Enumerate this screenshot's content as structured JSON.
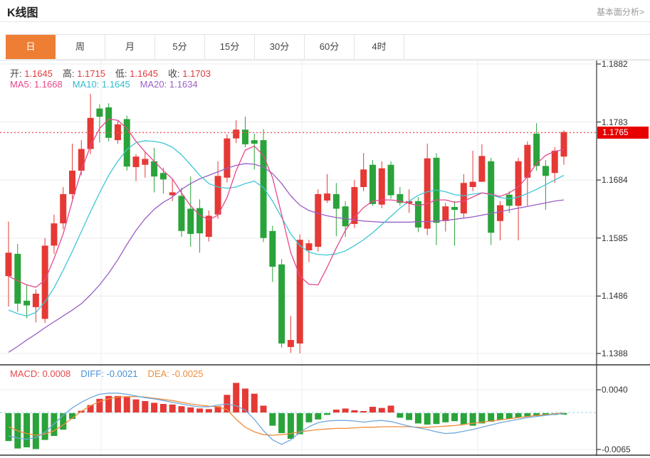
{
  "header": {
    "title": "K线图",
    "analysis_link": "基本面分析>"
  },
  "tabs": {
    "items": [
      "日",
      "周",
      "月",
      "5分",
      "15分",
      "30分",
      "60分",
      "4时"
    ],
    "active": "日"
  },
  "kline_panel": {
    "ohlc_legend": [
      {
        "label": "开:",
        "value": "1.1645"
      },
      {
        "label": "高:",
        "value": "1.1715"
      },
      {
        "label": "低:",
        "value": "1.1645"
      },
      {
        "label": "收:",
        "value": "1.1703"
      }
    ],
    "ma_legend": [
      {
        "label": "MA5:",
        "value": "1.1668",
        "color": "#e5488e"
      },
      {
        "label": "MA10:",
        "value": "1.1645",
        "color": "#2fbccc"
      },
      {
        "label": "MA20:",
        "value": "1.1634",
        "color": "#9a5fc5"
      }
    ],
    "current_price": "1.1765"
  },
  "macd_panel": {
    "legend": [
      {
        "label": "MACD:",
        "value": "0.0008",
        "color": "#e5484d"
      },
      {
        "label": "DIFF:",
        "value": "-0.0021",
        "color": "#4a90d9"
      },
      {
        "label": "DEA:",
        "value": "-0.0025",
        "color": "#f08c3a"
      }
    ]
  },
  "colors": {
    "up": "#e53935",
    "down": "#2aa33a",
    "ma5": "#e5488e",
    "ma10": "#3ec6d6",
    "ma20": "#9a5fc5",
    "diff_line": "#6fa8dc",
    "dea_line": "#f08c3a",
    "zero_dash": "#8fd3dc",
    "active_tab": "#ee7e33",
    "badge": "#e60000",
    "dotted_price_line": "#f05452",
    "grid": "#ececec",
    "border_dark": "#333333",
    "ohlc_value": "#e23b3b"
  },
  "chart_data": {
    "type": "candlestick",
    "title": "K线图 (daily K-line with MA5/MA10/MA20 and MACD)",
    "kline": {
      "axis_tick_labels": [
        "1.1882",
        "1.1783",
        "1.1684",
        "1.1585",
        "1.1486",
        "1.1388"
      ],
      "axis_tick_values": [
        1.1882,
        1.1783,
        1.1684,
        1.1585,
        1.1486,
        1.1388
      ],
      "ylim": [
        1.1369,
        1.1888
      ],
      "current_price": 1.1765,
      "candles_ohlc": [
        [
          1.152,
          1.1613,
          1.1468,
          1.156
        ],
        [
          1.1558,
          1.1575,
          1.1459,
          1.1473
        ],
        [
          1.1478,
          1.1505,
          1.1448,
          1.147
        ],
        [
          1.1467,
          1.1497,
          1.1441,
          1.149
        ],
        [
          1.1447,
          1.1585,
          1.144,
          1.1572
        ],
        [
          1.1572,
          1.1625,
          1.1558,
          1.161
        ],
        [
          1.161,
          1.1672,
          1.16,
          1.166
        ],
        [
          1.166,
          1.1746,
          1.1652,
          1.17
        ],
        [
          1.17,
          1.1752,
          1.1692,
          1.1737
        ],
        [
          1.1737,
          1.1831,
          1.1728,
          1.179
        ],
        [
          1.1806,
          1.1813,
          1.1748,
          1.1792
        ],
        [
          1.1808,
          1.1815,
          1.175,
          1.1756
        ],
        [
          1.1752,
          1.1786,
          1.1746,
          1.1779
        ],
        [
          1.1788,
          1.1794,
          1.17,
          1.1707
        ],
        [
          1.1706,
          1.1728,
          1.1682,
          1.1724
        ],
        [
          1.171,
          1.1732,
          1.1688,
          1.172
        ],
        [
          1.1716,
          1.1739,
          1.1663,
          1.169
        ],
        [
          1.1696,
          1.1705,
          1.1661,
          1.1685
        ],
        [
          1.1658,
          1.1686,
          1.1648,
          1.1663
        ],
        [
          1.1657,
          1.1671,
          1.1587,
          1.1597
        ],
        [
          1.1635,
          1.169,
          1.157,
          1.1592
        ],
        [
          1.1636,
          1.1651,
          1.156,
          1.1593
        ],
        [
          1.1587,
          1.1632,
          1.1579,
          1.1623
        ],
        [
          1.1625,
          1.1716,
          1.1618,
          1.1691
        ],
        [
          1.1688,
          1.1762,
          1.168,
          1.1755
        ],
        [
          1.1755,
          1.1786,
          1.1747,
          1.177
        ],
        [
          1.177,
          1.1792,
          1.174,
          1.1745
        ],
        [
          1.1752,
          1.1763,
          1.1702,
          1.1746
        ],
        [
          1.1752,
          1.1771,
          1.1578,
          1.1585
        ],
        [
          1.1597,
          1.1606,
          1.151,
          1.1536
        ],
        [
          1.154,
          1.1549,
          1.1398,
          1.1405
        ],
        [
          1.1399,
          1.1452,
          1.1389,
          1.1411
        ],
        [
          1.1405,
          1.1591,
          1.1388,
          1.1582
        ],
        [
          1.1564,
          1.1582,
          1.1544,
          1.1576
        ],
        [
          1.157,
          1.1668,
          1.1562,
          1.166
        ],
        [
          1.1649,
          1.1694,
          1.1645,
          1.1661
        ],
        [
          1.166,
          1.1679,
          1.1588,
          1.1635
        ],
        [
          1.1639,
          1.1648,
          1.1587,
          1.1605
        ],
        [
          1.1609,
          1.1684,
          1.1602,
          1.1672
        ],
        [
          1.1672,
          1.173,
          1.1665,
          1.1702
        ],
        [
          1.171,
          1.1718,
          1.164,
          1.1643
        ],
        [
          1.1642,
          1.1716,
          1.1636,
          1.1704
        ],
        [
          1.171,
          1.1716,
          1.1652,
          1.1658
        ],
        [
          1.166,
          1.1672,
          1.164,
          1.1645
        ],
        [
          1.1644,
          1.1668,
          1.1628,
          1.1648
        ],
        [
          1.1648,
          1.1655,
          1.1595,
          1.1603
        ],
        [
          1.1601,
          1.1746,
          1.159,
          1.1721
        ],
        [
          1.1722,
          1.173,
          1.1573,
          1.1611
        ],
        [
          1.1614,
          1.1645,
          1.1596,
          1.1639
        ],
        [
          1.1638,
          1.1648,
          1.1572,
          1.1633
        ],
        [
          1.1627,
          1.1694,
          1.162,
          1.1679
        ],
        [
          1.1672,
          1.1734,
          1.1665,
          1.1681
        ],
        [
          1.1681,
          1.1745,
          1.169,
          1.1725
        ],
        [
          1.1716,
          1.1722,
          1.1573,
          1.1594
        ],
        [
          1.1614,
          1.1648,
          1.1581,
          1.1641
        ],
        [
          1.1659,
          1.1665,
          1.1628,
          1.164
        ],
        [
          1.164,
          1.1722,
          1.1581,
          1.1716
        ],
        [
          1.1688,
          1.175,
          1.164,
          1.1744
        ],
        [
          1.1763,
          1.1781,
          1.17,
          1.1708
        ],
        [
          1.1708,
          1.1718,
          1.1633,
          1.1691
        ],
        [
          1.1696,
          1.174,
          1.1679,
          1.1734
        ],
        [
          1.1724,
          1.1769,
          1.171,
          1.1766
        ]
      ],
      "ma5": [
        1.152,
        1.1512,
        1.1505,
        1.1501,
        1.1513,
        1.155,
        1.1592,
        1.1648,
        1.17,
        1.1742,
        1.1772,
        1.1788,
        1.1786,
        1.1772,
        1.175,
        1.1732,
        1.1716,
        1.17,
        1.1686,
        1.1662,
        1.164,
        1.1624,
        1.1616,
        1.1624,
        1.1654,
        1.17,
        1.1735,
        1.1742,
        1.1726,
        1.1688,
        1.1625,
        1.156,
        1.152,
        1.1506,
        1.1505,
        1.1535,
        1.1568,
        1.1598,
        1.162,
        1.1637,
        1.1648,
        1.165,
        1.165,
        1.1648,
        1.1644,
        1.164,
        1.1644,
        1.165,
        1.165,
        1.1646,
        1.1648,
        1.1655,
        1.1662,
        1.166,
        1.1656,
        1.1662,
        1.1672,
        1.169,
        1.1712,
        1.1726,
        1.1733,
        1.1736
      ],
      "ma10": [
        1.1462,
        1.1456,
        1.1452,
        1.1458,
        1.1476,
        1.15,
        1.153,
        1.1562,
        1.1596,
        1.163,
        1.1662,
        1.1692,
        1.1716,
        1.1736,
        1.1748,
        1.1751,
        1.175,
        1.1747,
        1.174,
        1.1727,
        1.171,
        1.1692,
        1.1678,
        1.1672,
        1.167,
        1.1672,
        1.1678,
        1.1682,
        1.1671,
        1.1648,
        1.162,
        1.1592,
        1.1572,
        1.1561,
        1.1557,
        1.1556,
        1.1558,
        1.1563,
        1.1572,
        1.1582,
        1.1594,
        1.1608,
        1.1622,
        1.1636,
        1.1648,
        1.1658,
        1.1664,
        1.1667,
        1.1664,
        1.1659,
        1.1657,
        1.166,
        1.1662,
        1.1659,
        1.1654,
        1.1652,
        1.1655,
        1.1661,
        1.1668,
        1.1676,
        1.1684,
        1.1692
      ],
      "ma20": [
        1.139,
        1.14,
        1.1411,
        1.1421,
        1.1432,
        1.1442,
        1.1452,
        1.1462,
        1.1473,
        1.1488,
        1.1505,
        1.1525,
        1.1548,
        1.1574,
        1.1598,
        1.1618,
        1.1634,
        1.1646,
        1.1655,
        1.1668,
        1.1678,
        1.1686,
        1.1692,
        1.1698,
        1.1704,
        1.1709,
        1.1712,
        1.1711,
        1.1706,
        1.1695,
        1.1678,
        1.1657,
        1.1641,
        1.1632,
        1.1627,
        1.1623,
        1.162,
        1.1618,
        1.1616,
        1.1614,
        1.1613,
        1.1612,
        1.1612,
        1.1612,
        1.1612,
        1.1613,
        1.1613,
        1.1614,
        1.1615,
        1.1617,
        1.1619,
        1.1621,
        1.1624,
        1.1627,
        1.163,
        1.1633,
        1.1636,
        1.1639,
        1.1642,
        1.1645,
        1.1648,
        1.165
      ]
    },
    "macd": {
      "axis_tick_labels": [
        "0.0040",
        "-0.0065"
      ],
      "axis_tick_values": [
        0.004,
        -0.0065
      ],
      "ylim": [
        -0.0076,
        0.0084
      ],
      "histogram": [
        -0.0049,
        -0.0062,
        -0.006,
        -0.0063,
        -0.0047,
        -0.004,
        -0.0029,
        -0.001,
        0.0003,
        0.0013,
        0.0024,
        0.0029,
        0.0029,
        0.0027,
        0.0023,
        0.002,
        0.0017,
        0.0015,
        0.0014,
        0.0011,
        0.0009,
        0.0007,
        0.0006,
        0.0011,
        0.0031,
        0.0052,
        0.0042,
        0.0033,
        0.0012,
        -0.0022,
        -0.0035,
        -0.0045,
        -0.0037,
        -0.0016,
        -0.0011,
        -0.0003,
        0.0005,
        0.0007,
        0.0004,
        0.0002,
        0.001,
        0.0008,
        0.0012,
        -0.0008,
        -0.0012,
        -0.0018,
        -0.002,
        -0.0019,
        -0.0016,
        -0.0014,
        -0.002,
        -0.0022,
        -0.0018,
        -0.0015,
        -0.0012,
        -0.001,
        -0.0008,
        -0.0006,
        -0.0005,
        -0.0004,
        -0.0003,
        -0.0002
      ],
      "diff": [
        -0.0041,
        -0.0045,
        -0.0047,
        -0.0044,
        -0.0035,
        -0.002,
        -0.0005,
        0.0008,
        0.0018,
        0.0026,
        0.0032,
        0.0034,
        0.0034,
        0.0032,
        0.0029,
        0.0026,
        0.0024,
        0.0021,
        0.0018,
        0.0015,
        0.0012,
        0.001,
        0.001,
        0.0013,
        0.0015,
        0.0012,
        0.0004,
        -0.0012,
        -0.0032,
        -0.0048,
        -0.0056,
        -0.0048,
        -0.0035,
        -0.0025,
        -0.0018,
        -0.0015,
        -0.0014,
        -0.0014,
        -0.0015,
        -0.0017,
        -0.0015,
        -0.0014,
        -0.0016,
        -0.002,
        -0.0024,
        -0.0027,
        -0.003,
        -0.0034,
        -0.0037,
        -0.0036,
        -0.0033,
        -0.003,
        -0.0026,
        -0.0022,
        -0.0018,
        -0.0015,
        -0.0012,
        -0.0009,
        -0.0007,
        -0.0005,
        -0.0003,
        -0.0002
      ],
      "dea": [
        -0.0025,
        -0.0032,
        -0.0037,
        -0.004,
        -0.0038,
        -0.0032,
        -0.0022,
        -0.001,
        0.0002,
        0.0012,
        0.0019,
        0.0024,
        0.0027,
        0.0028,
        0.0028,
        0.0027,
        0.0025,
        0.0023,
        0.0021,
        0.0018,
        0.0015,
        0.0013,
        0.0011,
        0.001,
        0.0005,
        -0.0012,
        -0.0026,
        -0.0034,
        -0.0039,
        -0.004,
        -0.0039,
        -0.0037,
        -0.0034,
        -0.0032,
        -0.003,
        -0.0029,
        -0.0028,
        -0.0028,
        -0.0027,
        -0.0026,
        -0.0026,
        -0.0025,
        -0.0025,
        -0.0025,
        -0.0025,
        -0.0026,
        -0.0026,
        -0.0025,
        -0.0024,
        -0.0023,
        -0.0021,
        -0.0019,
        -0.0017,
        -0.0015,
        -0.0013,
        -0.0011,
        -0.0009,
        -0.0007,
        -0.0005,
        -0.0004,
        -0.0002,
        -0.0001
      ]
    }
  }
}
